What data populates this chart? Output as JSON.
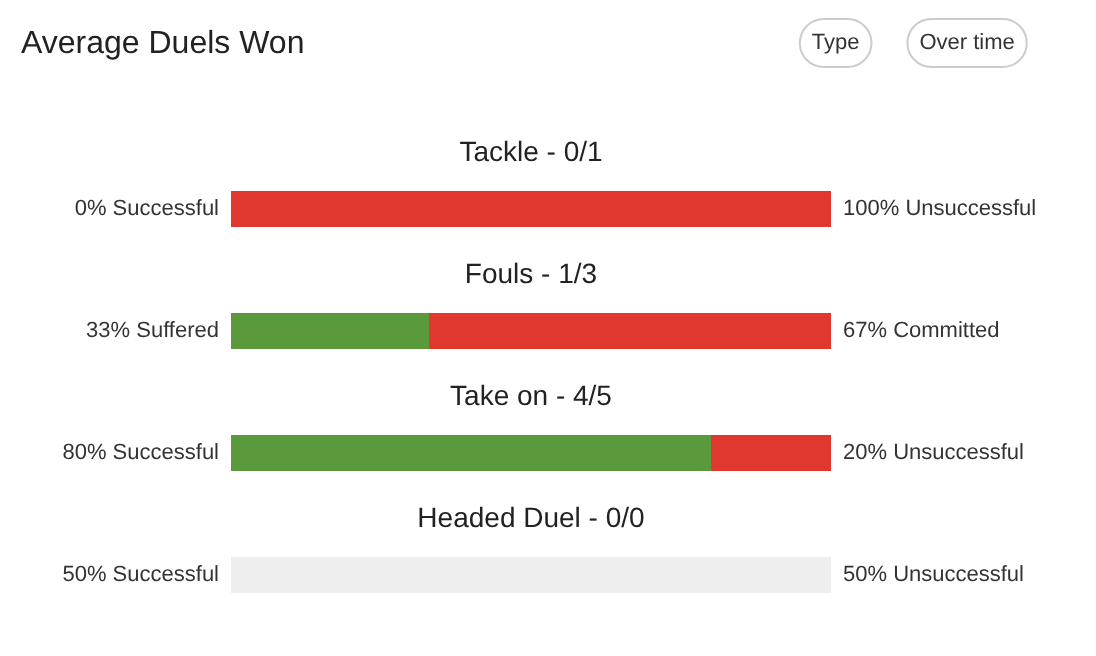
{
  "chart_data": {
    "type": "bar",
    "orientation": "horizontal",
    "stacked": true,
    "title": "Average Duels Won",
    "annotations": [
      "Type",
      "Over time"
    ],
    "categories": [
      "Tackle - 0/1",
      "Fouls - 1/3",
      "Take on - 4/5",
      "Headed Duel - 0/0"
    ],
    "series": [
      {
        "colors": [
          "#5b9a3c",
          "#5b9a3c",
          "#5b9a3c",
          "#eeeeee"
        ],
        "values": [
          0,
          33,
          80,
          50
        ],
        "value_labels": [
          "0% Successful",
          "33% Suffered",
          "80% Successful",
          "50% Successful"
        ]
      },
      {
        "colors": [
          "#e0382e",
          "#e0382e",
          "#e0382e",
          "#eeeeee"
        ],
        "values": [
          100,
          67,
          20,
          50
        ],
        "value_labels": [
          "100% Unsuccessful",
          "67% Committed",
          "20% Unsuccessful",
          "50% Unsuccessful"
        ]
      }
    ]
  }
}
